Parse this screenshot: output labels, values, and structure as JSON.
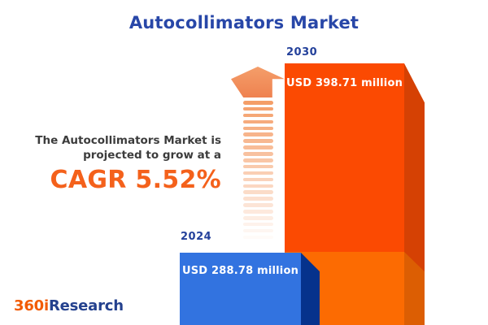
{
  "title": "Autocollimators Market",
  "annotation": {
    "line1": "The Autocollimators Market is",
    "line2": "projected to grow at a",
    "cagr": "CAGR 5.52%"
  },
  "chart_data": {
    "type": "bar",
    "title": "Autocollimators Market",
    "orientation": "vertical",
    "style": "3d-infographic",
    "categories": [
      "2024",
      "2030"
    ],
    "values": [
      288.78,
      398.71
    ],
    "unit": "USD million",
    "cagr_percent": 5.52,
    "bars": [
      {
        "year": "2024",
        "label": "USD 288.78 million",
        "value": 288.78,
        "color": "#3273E0"
      },
      {
        "year": "2030",
        "label": "USD 398.71 million",
        "value": 398.71,
        "color": "#FB4A02"
      }
    ],
    "legend": "none",
    "axes": "none"
  },
  "arrow": {
    "stripe_count": 22
  },
  "logo": {
    "part1": "360i",
    "part2": "Research"
  },
  "colors": {
    "background": "#FFFFFF",
    "title_blue": "#2847A8",
    "year_blue": "#24419B",
    "text_dark": "#3C3C3C",
    "cagr_orange": "#F4611B",
    "orange_front_top": "#FB4A02",
    "orange_front_bottom": "#FC6B02",
    "orange_side_top": "#D54104",
    "orange_side_bottom": "#DC5E03",
    "blue_front": "#3273E0",
    "blue_side": "#06328C",
    "arrow_head": "#EF8250",
    "arrow_head_light": "#F49E6A",
    "arrow_stripe": "#F49A62",
    "logo_orange": "#F25B04",
    "logo_blue": "#24418E"
  }
}
